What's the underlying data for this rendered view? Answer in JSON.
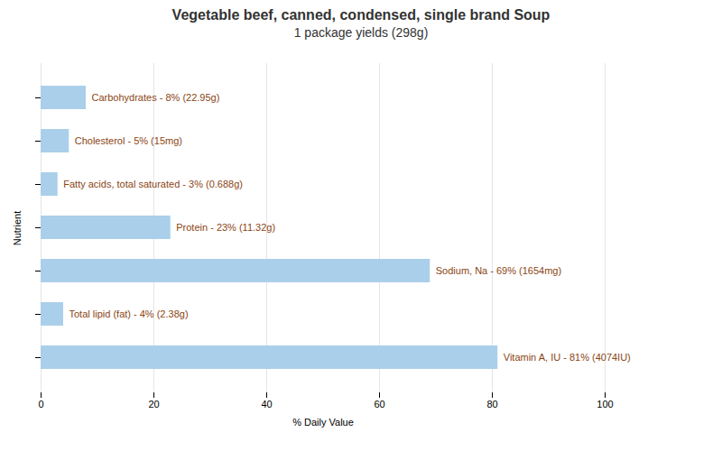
{
  "chart_data": {
    "type": "bar",
    "orientation": "horizontal",
    "title": "Vegetable beef, canned, condensed, single brand Soup",
    "subtitle": "1 package yields (298g)",
    "x_label": "% Daily Value",
    "y_label": "Nutrient",
    "categories": [
      null,
      null,
      null,
      null,
      null,
      null,
      null
    ],
    "values": [
      8,
      5,
      3,
      23,
      69,
      4,
      81
    ],
    "value_labels": [
      "Carbohydrates - 8% (22.95g)",
      "Cholesterol - 5% (15mg)",
      "Fatty acids, total saturated - 3% (0.688g)",
      "Protein - 23% (11.32g)",
      "Sodium, Na - 69% (1654mg)",
      "Total lipid (fat) - 4% (2.38g)",
      "Vitamin A, IU - 81% (4074IU)"
    ],
    "data_labels": true,
    "color": "#aacfea",
    "xlim": [
      0,
      100
    ],
    "xticks": [
      0,
      20,
      40,
      60,
      80,
      100
    ],
    "grid": true,
    "tick_labels": "x"
  }
}
